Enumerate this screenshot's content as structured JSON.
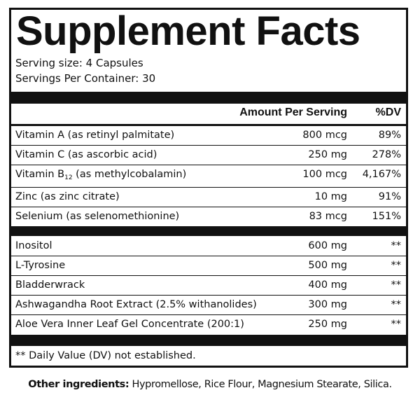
{
  "panel": {
    "title": "Supplement Facts",
    "serving_size": "Serving size: 4 Capsules",
    "servings_per_container": "Servings Per Container: 30",
    "header": {
      "amount": "Amount Per Serving",
      "dv": "%DV"
    },
    "vitamins": [
      {
        "name": "Vitamin A (as retinyl palmitate)",
        "amount": "800 mcg",
        "dv": "89%"
      },
      {
        "name": "Vitamin C (as ascorbic acid)",
        "amount": "250 mg",
        "dv": "278%"
      },
      {
        "name_pre": "Vitamin B",
        "name_sub": "12",
        "name_post": " (as methylcobalamin)",
        "amount": "100 mcg",
        "dv": "4,167%"
      },
      {
        "name": "Zinc (as zinc citrate)",
        "amount": "10 mg",
        "dv": "91%"
      },
      {
        "name": "Selenium (as selenomethionine)",
        "amount": "83 mcg",
        "dv": "151%"
      }
    ],
    "others": [
      {
        "name": "Inositol",
        "amount": "600 mg",
        "dv": "**"
      },
      {
        "name": "L-Tyrosine",
        "amount": "500 mg",
        "dv": "**"
      },
      {
        "name": "Bladderwrack",
        "amount": "400 mg",
        "dv": "**"
      },
      {
        "name": "Ashwagandha Root Extract (2.5% withanolides)",
        "amount": "300 mg",
        "dv": "**"
      },
      {
        "name": "Aloe Vera Inner Leaf Gel Concentrate (200:1)",
        "amount": "250 mg",
        "dv": "**"
      }
    ],
    "footnote": "** Daily Value (DV) not established."
  },
  "other_ingredients": {
    "label": "Other ingredients:",
    "text": " Hypromellose, Rice Flour, Magnesium Stearate, Silica."
  }
}
